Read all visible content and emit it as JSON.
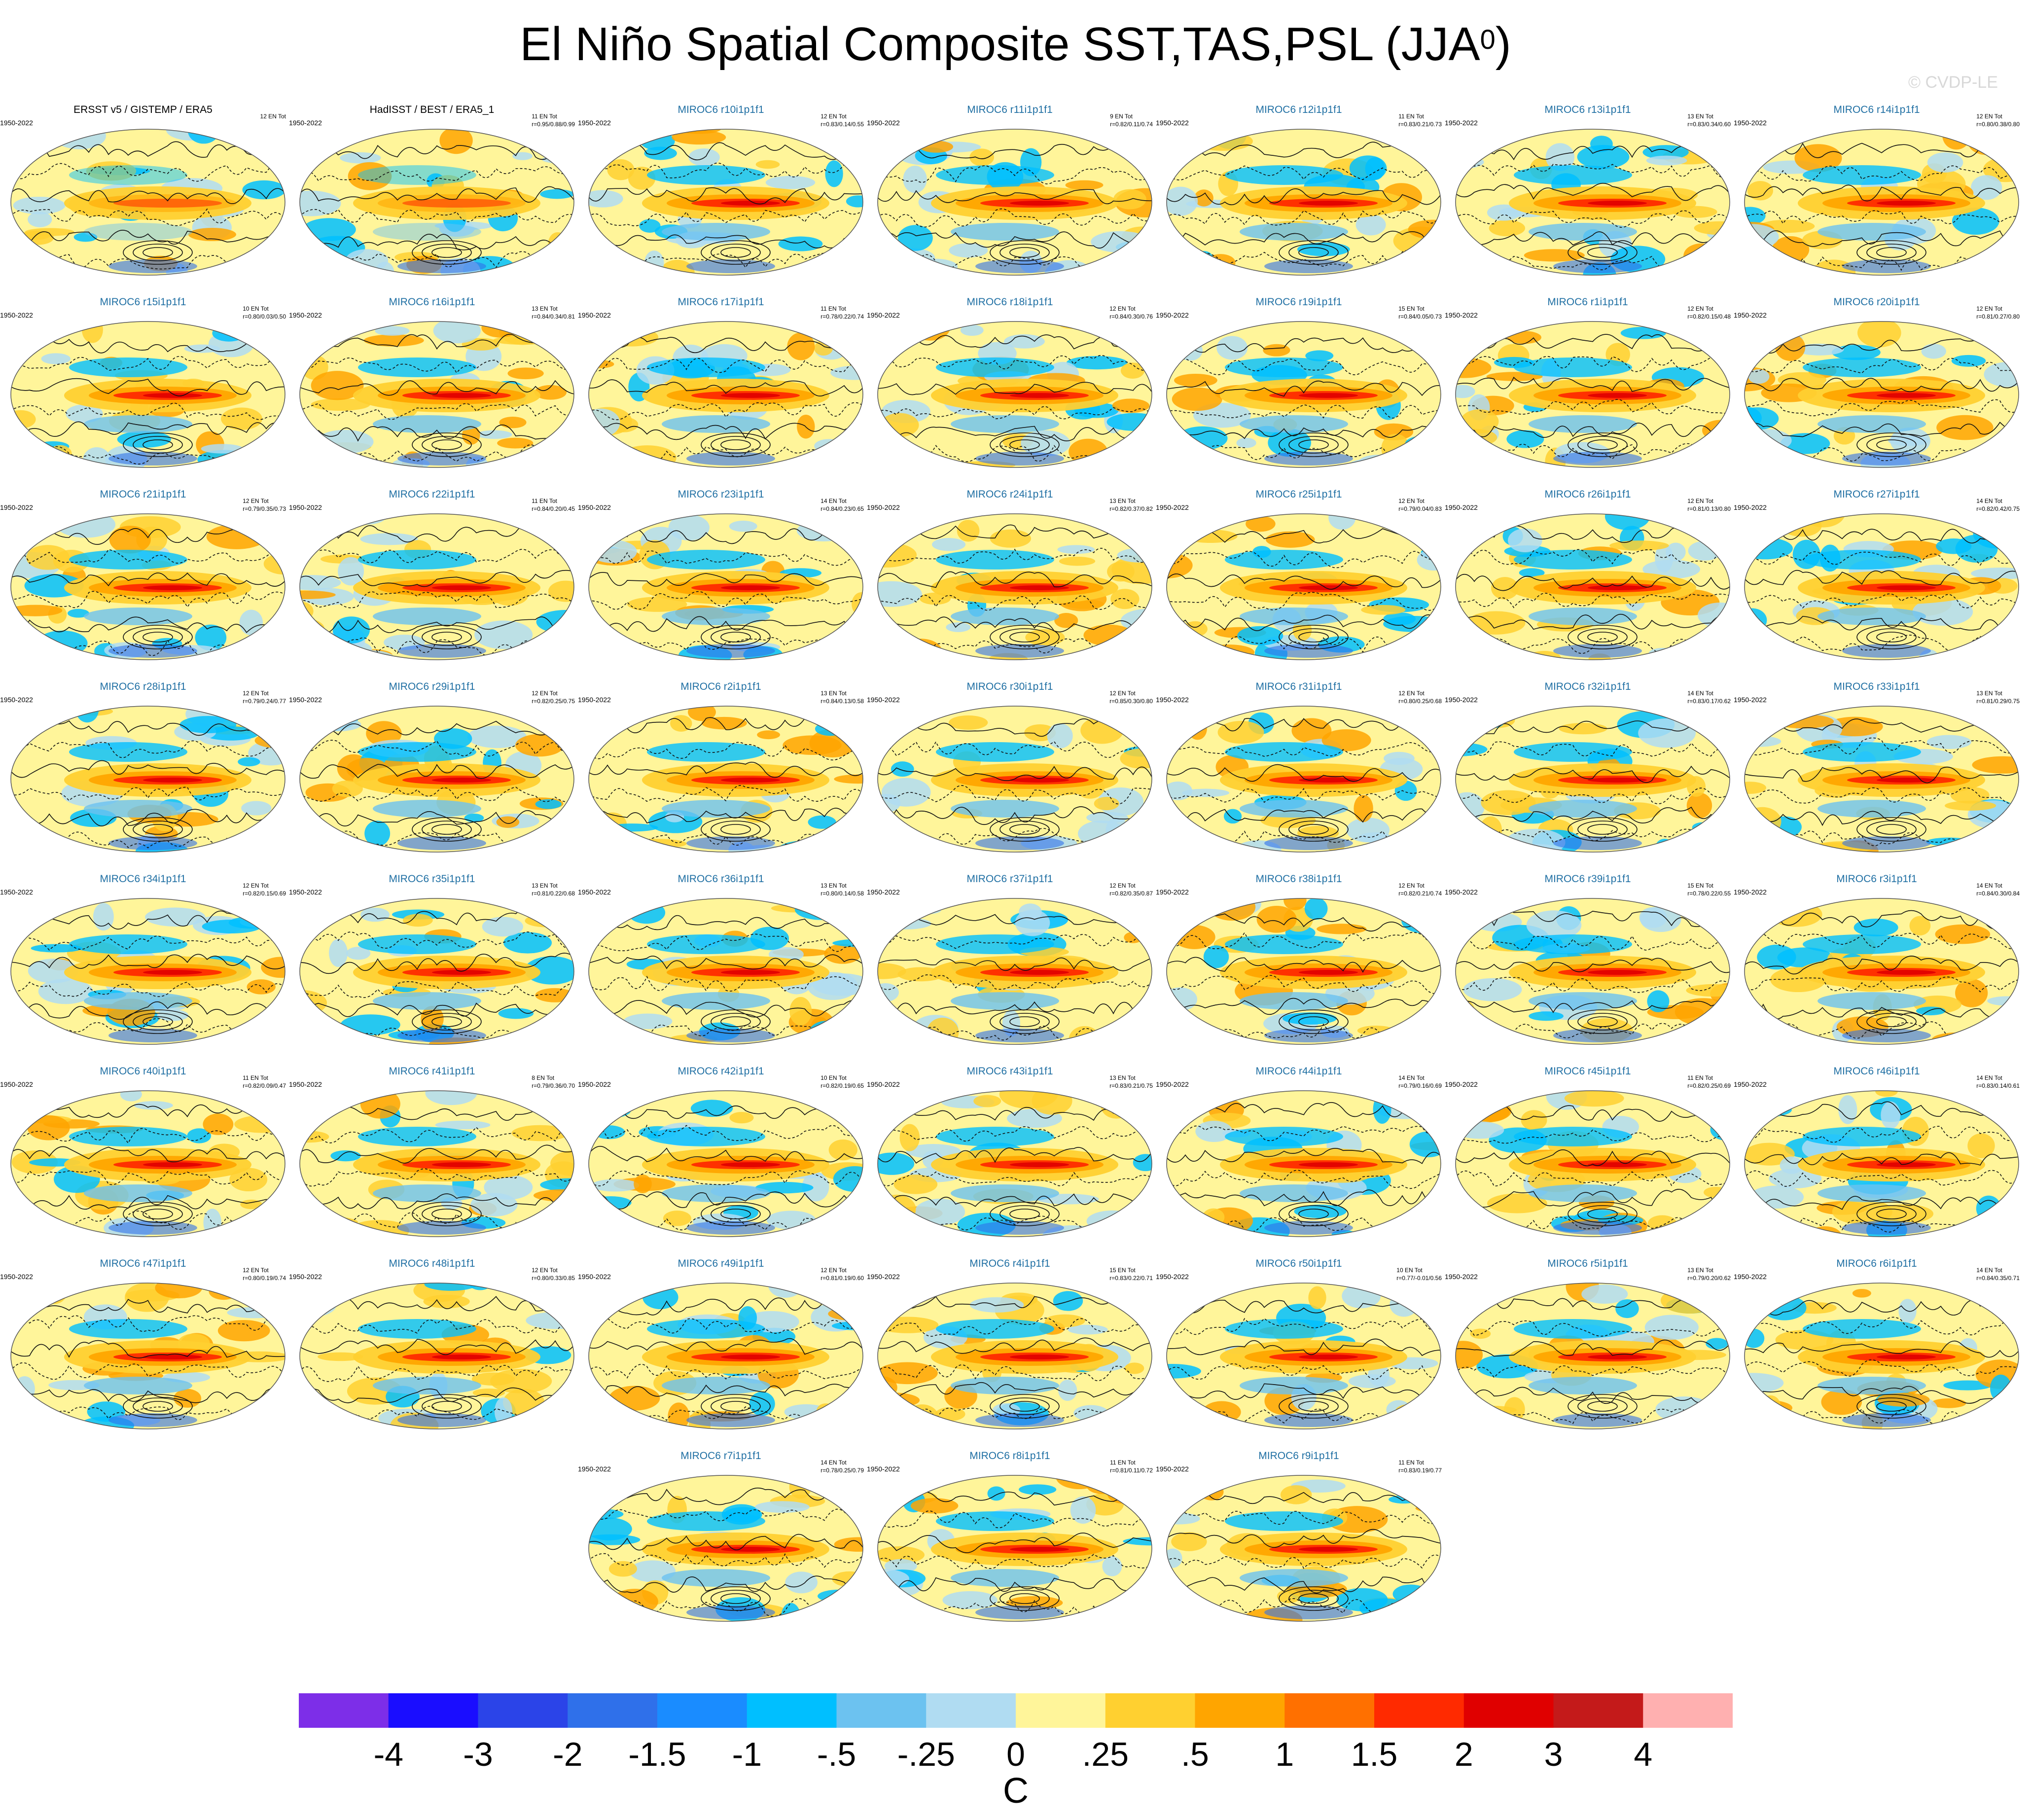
{
  "title_main": "El Niño Spatial Composite SST,TAS,PSL (JJA",
  "title_sup": "0",
  "title_close": ")",
  "credit": "© CVDP-LE",
  "period": "1950-2022",
  "chart_data": {
    "type": "heatmap",
    "title": "El Niño Spatial Composite SST,TAS,PSL (JJA0)",
    "colorbar": {
      "units": "C",
      "labels": [
        "-4",
        "-3",
        "-2",
        "-1.5",
        "-1",
        "-.5",
        "-.25",
        "0",
        ".25",
        ".5",
        "1",
        "1.5",
        "2",
        "3",
        "4"
      ],
      "colors": [
        "#7d2ee8",
        "#1a0dff",
        "#2b44e8",
        "#2f70ea",
        "#1a8cff",
        "#00bfff",
        "#6cc2f0",
        "#b0dcf2",
        "#fff59a",
        "#ffd030",
        "#ffa500",
        "#ff7000",
        "#ff2a00",
        "#e00000",
        "#c41a1a",
        "#ffb0b0"
      ]
    },
    "panels": [
      {
        "name": "ERSST v5 / GISTEMP / ERA5",
        "events": "12 EN Tot",
        "stats": ""
      },
      {
        "name": "HadISST / BEST / ERA5_1",
        "events": "11 EN Tot",
        "stats": "r=0.95/0.88/0.99"
      },
      {
        "name": "MIROC6 r10i1p1f1",
        "events": "12 EN Tot",
        "stats": "r=0.83/0.14/0.55"
      },
      {
        "name": "MIROC6 r11i1p1f1",
        "events": "9 EN Tot",
        "stats": "r=0.82/0.11/0.74"
      },
      {
        "name": "MIROC6 r12i1p1f1",
        "events": "11 EN Tot",
        "stats": "r=0.83/0.21/0.73"
      },
      {
        "name": "MIROC6 r13i1p1f1",
        "events": "13 EN Tot",
        "stats": "r=0.83/0.34/0.60"
      },
      {
        "name": "MIROC6 r14i1p1f1",
        "events": "12 EN Tot",
        "stats": "r=0.80/0.38/0.80"
      },
      {
        "name": "MIROC6 r15i1p1f1",
        "events": "10 EN Tot",
        "stats": "r=0.80/0.03/0.50"
      },
      {
        "name": "MIROC6 r16i1p1f1",
        "events": "13 EN Tot",
        "stats": "r=0.84/0.34/0.81"
      },
      {
        "name": "MIROC6 r17i1p1f1",
        "events": "11 EN Tot",
        "stats": "r=0.78/0.22/0.74"
      },
      {
        "name": "MIROC6 r18i1p1f1",
        "events": "12 EN Tot",
        "stats": "r=0.84/0.30/0.76"
      },
      {
        "name": "MIROC6 r19i1p1f1",
        "events": "15 EN Tot",
        "stats": "r=0.84/0.05/0.73"
      },
      {
        "name": "MIROC6 r1i1p1f1",
        "events": "12 EN Tot",
        "stats": "r=0.82/0.15/0.48"
      },
      {
        "name": "MIROC6 r20i1p1f1",
        "events": "12 EN Tot",
        "stats": "r=0.81/0.27/0.80"
      },
      {
        "name": "MIROC6 r21i1p1f1",
        "events": "12 EN Tot",
        "stats": "r=0.79/0.35/0.73"
      },
      {
        "name": "MIROC6 r22i1p1f1",
        "events": "11 EN Tot",
        "stats": "r=0.84/0.20/0.45"
      },
      {
        "name": "MIROC6 r23i1p1f1",
        "events": "14 EN Tot",
        "stats": "r=0.84/0.23/0.65"
      },
      {
        "name": "MIROC6 r24i1p1f1",
        "events": "13 EN Tot",
        "stats": "r=0.82/0.37/0.82"
      },
      {
        "name": "MIROC6 r25i1p1f1",
        "events": "12 EN Tot",
        "stats": "r=0.79/0.04/0.83"
      },
      {
        "name": "MIROC6 r26i1p1f1",
        "events": "12 EN Tot",
        "stats": "r=0.81/0.13/0.80"
      },
      {
        "name": "MIROC6 r27i1p1f1",
        "events": "14 EN Tot",
        "stats": "r=0.82/0.42/0.75"
      },
      {
        "name": "MIROC6 r28i1p1f1",
        "events": "12 EN Tot",
        "stats": "r=0.79/0.24/0.77"
      },
      {
        "name": "MIROC6 r29i1p1f1",
        "events": "12 EN Tot",
        "stats": "r=0.82/0.25/0.75"
      },
      {
        "name": "MIROC6 r2i1p1f1",
        "events": "13 EN Tot",
        "stats": "r=0.84/0.13/0.58"
      },
      {
        "name": "MIROC6 r30i1p1f1",
        "events": "12 EN Tot",
        "stats": "r=0.85/0.30/0.80"
      },
      {
        "name": "MIROC6 r31i1p1f1",
        "events": "12 EN Tot",
        "stats": "r=0.80/0.25/0.68"
      },
      {
        "name": "MIROC6 r32i1p1f1",
        "events": "14 EN Tot",
        "stats": "r=0.83/0.17/0.62"
      },
      {
        "name": "MIROC6 r33i1p1f1",
        "events": "13 EN Tot",
        "stats": "r=0.81/0.29/0.75"
      },
      {
        "name": "MIROC6 r34i1p1f1",
        "events": "12 EN Tot",
        "stats": "r=0.82/0.15/0.69"
      },
      {
        "name": "MIROC6 r35i1p1f1",
        "events": "13 EN Tot",
        "stats": "r=0.81/0.22/0.68"
      },
      {
        "name": "MIROC6 r36i1p1f1",
        "events": "13 EN Tot",
        "stats": "r=0.80/0.14/0.58"
      },
      {
        "name": "MIROC6 r37i1p1f1",
        "events": "12 EN Tot",
        "stats": "r=0.82/0.35/0.87"
      },
      {
        "name": "MIROC6 r38i1p1f1",
        "events": "12 EN Tot",
        "stats": "r=0.82/0.21/0.74"
      },
      {
        "name": "MIROC6 r39i1p1f1",
        "events": "15 EN Tot",
        "stats": "r=0.78/0.22/0.55"
      },
      {
        "name": "MIROC6 r3i1p1f1",
        "events": "14 EN Tot",
        "stats": "r=0.84/0.30/0.84"
      },
      {
        "name": "MIROC6 r40i1p1f1",
        "events": "11 EN Tot",
        "stats": "r=0.82/0.09/0.47"
      },
      {
        "name": "MIROC6 r41i1p1f1",
        "events": "8 EN Tot",
        "stats": "r=0.79/0.36/0.70"
      },
      {
        "name": "MIROC6 r42i1p1f1",
        "events": "10 EN Tot",
        "stats": "r=0.82/0.19/0.65"
      },
      {
        "name": "MIROC6 r43i1p1f1",
        "events": "13 EN Tot",
        "stats": "r=0.83/0.21/0.75"
      },
      {
        "name": "MIROC6 r44i1p1f1",
        "events": "14 EN Tot",
        "stats": "r=0.79/0.16/0.69"
      },
      {
        "name": "MIROC6 r45i1p1f1",
        "events": "11 EN Tot",
        "stats": "r=0.82/0.25/0.69"
      },
      {
        "name": "MIROC6 r46i1p1f1",
        "events": "14 EN Tot",
        "stats": "r=0.83/0.14/0.61"
      },
      {
        "name": "MIROC6 r47i1p1f1",
        "events": "12 EN Tot",
        "stats": "r=0.80/0.19/0.74"
      },
      {
        "name": "MIROC6 r48i1p1f1",
        "events": "12 EN Tot",
        "stats": "r=0.80/0.33/0.85"
      },
      {
        "name": "MIROC6 r49i1p1f1",
        "events": "12 EN Tot",
        "stats": "r=0.81/0.19/0.60"
      },
      {
        "name": "MIROC6 r4i1p1f1",
        "events": "15 EN Tot",
        "stats": "r=0.83/0.22/0.71"
      },
      {
        "name": "MIROC6 r50i1p1f1",
        "events": "10 EN Tot",
        "stats": "r=0.77/-0.01/0.56"
      },
      {
        "name": "MIROC6 r5i1p1f1",
        "events": "13 EN Tot",
        "stats": "r=0.79/0.20/0.62"
      },
      {
        "name": "MIROC6 r6i1p1f1",
        "events": "14 EN Tot",
        "stats": "r=0.84/0.35/0.71"
      },
      {
        "name": "MIROC6 r7i1p1f1",
        "events": "14 EN Tot",
        "stats": "r=0.78/0.25/0.79"
      },
      {
        "name": "MIROC6 r8i1p1f1",
        "events": "11 EN Tot",
        "stats": "r=0.81/0.11/0.72"
      },
      {
        "name": "MIROC6 r9i1p1f1",
        "events": "11 EN Tot",
        "stats": "r=0.83/0.19/0.77"
      }
    ]
  }
}
